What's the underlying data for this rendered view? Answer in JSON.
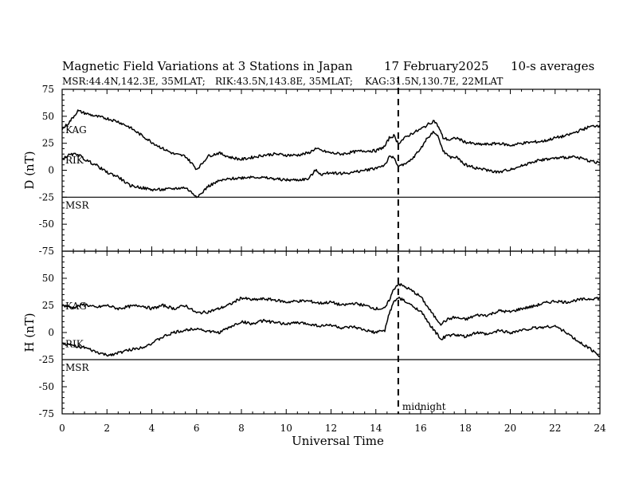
{
  "chart_data": {
    "type": "line",
    "title": "Magnetic Field Variations at 3 Stations in Japan",
    "date": "17 February2025",
    "averaging": "10-s averages",
    "stations_info": [
      "MSR:44.4N,142.3E, 35MLAT;",
      "RIK:43.5N,143.8E, 35MLAT;",
      "KAG:31.5N,130.7E, 22MLAT"
    ],
    "xlabel": "Universal Time",
    "xlim": [
      0,
      24
    ],
    "xticks": [
      0,
      2,
      4,
      6,
      8,
      10,
      12,
      14,
      16,
      18,
      20,
      22,
      24
    ],
    "annotation": {
      "x": 15,
      "label": "midnight"
    },
    "panels": [
      {
        "ylabel": "D (nT)",
        "ylim": [
          -75,
          75
        ],
        "yticks": [
          75,
          50,
          25,
          0,
          -25,
          -50,
          -75
        ],
        "baseline_station": "MSR",
        "series": [
          {
            "name": "KAG",
            "x": [
              0,
              0.3,
              0.7,
              1,
              1.5,
              2,
              2.5,
              3,
              3.5,
              4,
              4.5,
              5,
              5.5,
              5.8,
              6,
              6.2,
              6.5,
              7,
              7.5,
              8,
              8.5,
              9,
              9.5,
              10,
              10.5,
              11,
              11.3,
              11.6,
              12,
              12.5,
              13,
              13.5,
              14,
              14.4,
              14.6,
              14.8,
              15,
              15.3,
              15.6,
              16,
              16.3,
              16.6,
              16.8,
              17,
              17.3,
              17.6,
              18,
              18.5,
              19,
              19.5,
              20,
              20.5,
              21,
              21.5,
              22,
              22.5,
              23,
              23.5,
              24
            ],
            "values": [
              38,
              44,
              55,
              53,
              50,
              48,
              45,
              40,
              33,
              26,
              20,
              15,
              13,
              6,
              1,
              5,
              13,
              16,
              12,
              10,
              12,
              14,
              15,
              14,
              14,
              16,
              20,
              18,
              16,
              15,
              17,
              18,
              18,
              22,
              30,
              32,
              25,
              30,
              34,
              38,
              42,
              46,
              40,
              30,
              28,
              30,
              26,
              24,
              24,
              25,
              23,
              25,
              26,
              27,
              30,
              32,
              36,
              40,
              42
            ]
          },
          {
            "name": "RIK",
            "x": [
              0,
              0.3,
              0.7,
              1,
              1.5,
              2,
              2.5,
              3,
              3.5,
              4,
              4.5,
              5,
              5.5,
              5.8,
              6,
              6.2,
              6.5,
              7,
              7.5,
              8,
              8.5,
              9,
              9.5,
              10,
              10.5,
              11,
              11.3,
              11.6,
              12,
              12.5,
              13,
              13.5,
              14,
              14.4,
              14.6,
              14.8,
              15,
              15.3,
              15.6,
              16,
              16.3,
              16.6,
              16.8,
              17,
              17.3,
              17.6,
              18,
              18.5,
              19,
              19.5,
              20,
              20.5,
              21,
              21.5,
              22,
              22.5,
              23,
              23.5,
              24
            ],
            "values": [
              10,
              14,
              15,
              10,
              5,
              -2,
              -6,
              -14,
              -16,
              -18,
              -18,
              -17,
              -16,
              -21,
              -24,
              -22,
              -15,
              -10,
              -8,
              -7,
              -6,
              -7,
              -8,
              -9,
              -9,
              -8,
              0,
              -4,
              -2,
              -3,
              -2,
              0,
              2,
              5,
              12,
              12,
              4,
              5,
              10,
              20,
              30,
              36,
              30,
              18,
              12,
              12,
              5,
              2,
              0,
              -2,
              1,
              4,
              8,
              10,
              11,
              12,
              12,
              9,
              7
            ]
          }
        ]
      },
      {
        "ylabel": "H (nT)",
        "ylim": [
          -75,
          75
        ],
        "yticks": [
          75,
          50,
          25,
          0,
          -25,
          -50,
          -75
        ],
        "baseline_station": "MSR",
        "series": [
          {
            "name": "KAG",
            "x": [
              0,
              0.5,
              1,
              1.5,
              2,
              2.5,
              3,
              3.5,
              4,
              4.5,
              5,
              5.5,
              6,
              6.5,
              7,
              7.5,
              8,
              8.5,
              9,
              9.5,
              10,
              10.5,
              11,
              11.5,
              12,
              12.5,
              13,
              13.5,
              14,
              14.4,
              14.6,
              14.8,
              15,
              15.2,
              15.5,
              16,
              16.3,
              16.6,
              16.9,
              17.2,
              17.5,
              18,
              18.5,
              19,
              19.5,
              20,
              20.5,
              21,
              21.5,
              22,
              22.5,
              23,
              23.5,
              24
            ],
            "values": [
              25,
              23,
              26,
              23,
              25,
              22,
              24,
              25,
              22,
              25,
              22,
              25,
              18,
              19,
              22,
              26,
              32,
              30,
              31,
              30,
              28,
              29,
              29,
              27,
              28,
              25,
              27,
              25,
              22,
              22,
              30,
              40,
              45,
              43,
              40,
              33,
              24,
              15,
              8,
              12,
              14,
              12,
              16,
              16,
              20,
              19,
              22,
              24,
              27,
              29,
              28,
              30,
              31,
              32
            ]
          },
          {
            "name": "RIK",
            "x": [
              0,
              0.5,
              1,
              1.5,
              2,
              2.5,
              3,
              3.5,
              4,
              4.5,
              5,
              5.5,
              6,
              6.5,
              7,
              7.5,
              8,
              8.5,
              9,
              9.5,
              10,
              10.5,
              11,
              11.5,
              12,
              12.5,
              13,
              13.5,
              14,
              14.4,
              14.6,
              14.8,
              15,
              15.2,
              15.5,
              16,
              16.3,
              16.6,
              16.9,
              17.2,
              17.5,
              18,
              18.5,
              19,
              19.5,
              20,
              20.5,
              21,
              21.5,
              22,
              22.5,
              23,
              23.5,
              24
            ],
            "values": [
              -10,
              -12,
              -14,
              -18,
              -21,
              -19,
              -16,
              -14,
              -10,
              -4,
              0,
              2,
              4,
              1,
              0,
              5,
              10,
              8,
              11,
              9,
              8,
              9,
              8,
              6,
              7,
              4,
              5,
              2,
              0,
              2,
              18,
              28,
              32,
              30,
              26,
              20,
              10,
              2,
              -6,
              -3,
              -2,
              -4,
              0,
              -2,
              2,
              0,
              2,
              4,
              5,
              6,
              0,
              -8,
              -14,
              -22
            ]
          }
        ]
      }
    ]
  }
}
